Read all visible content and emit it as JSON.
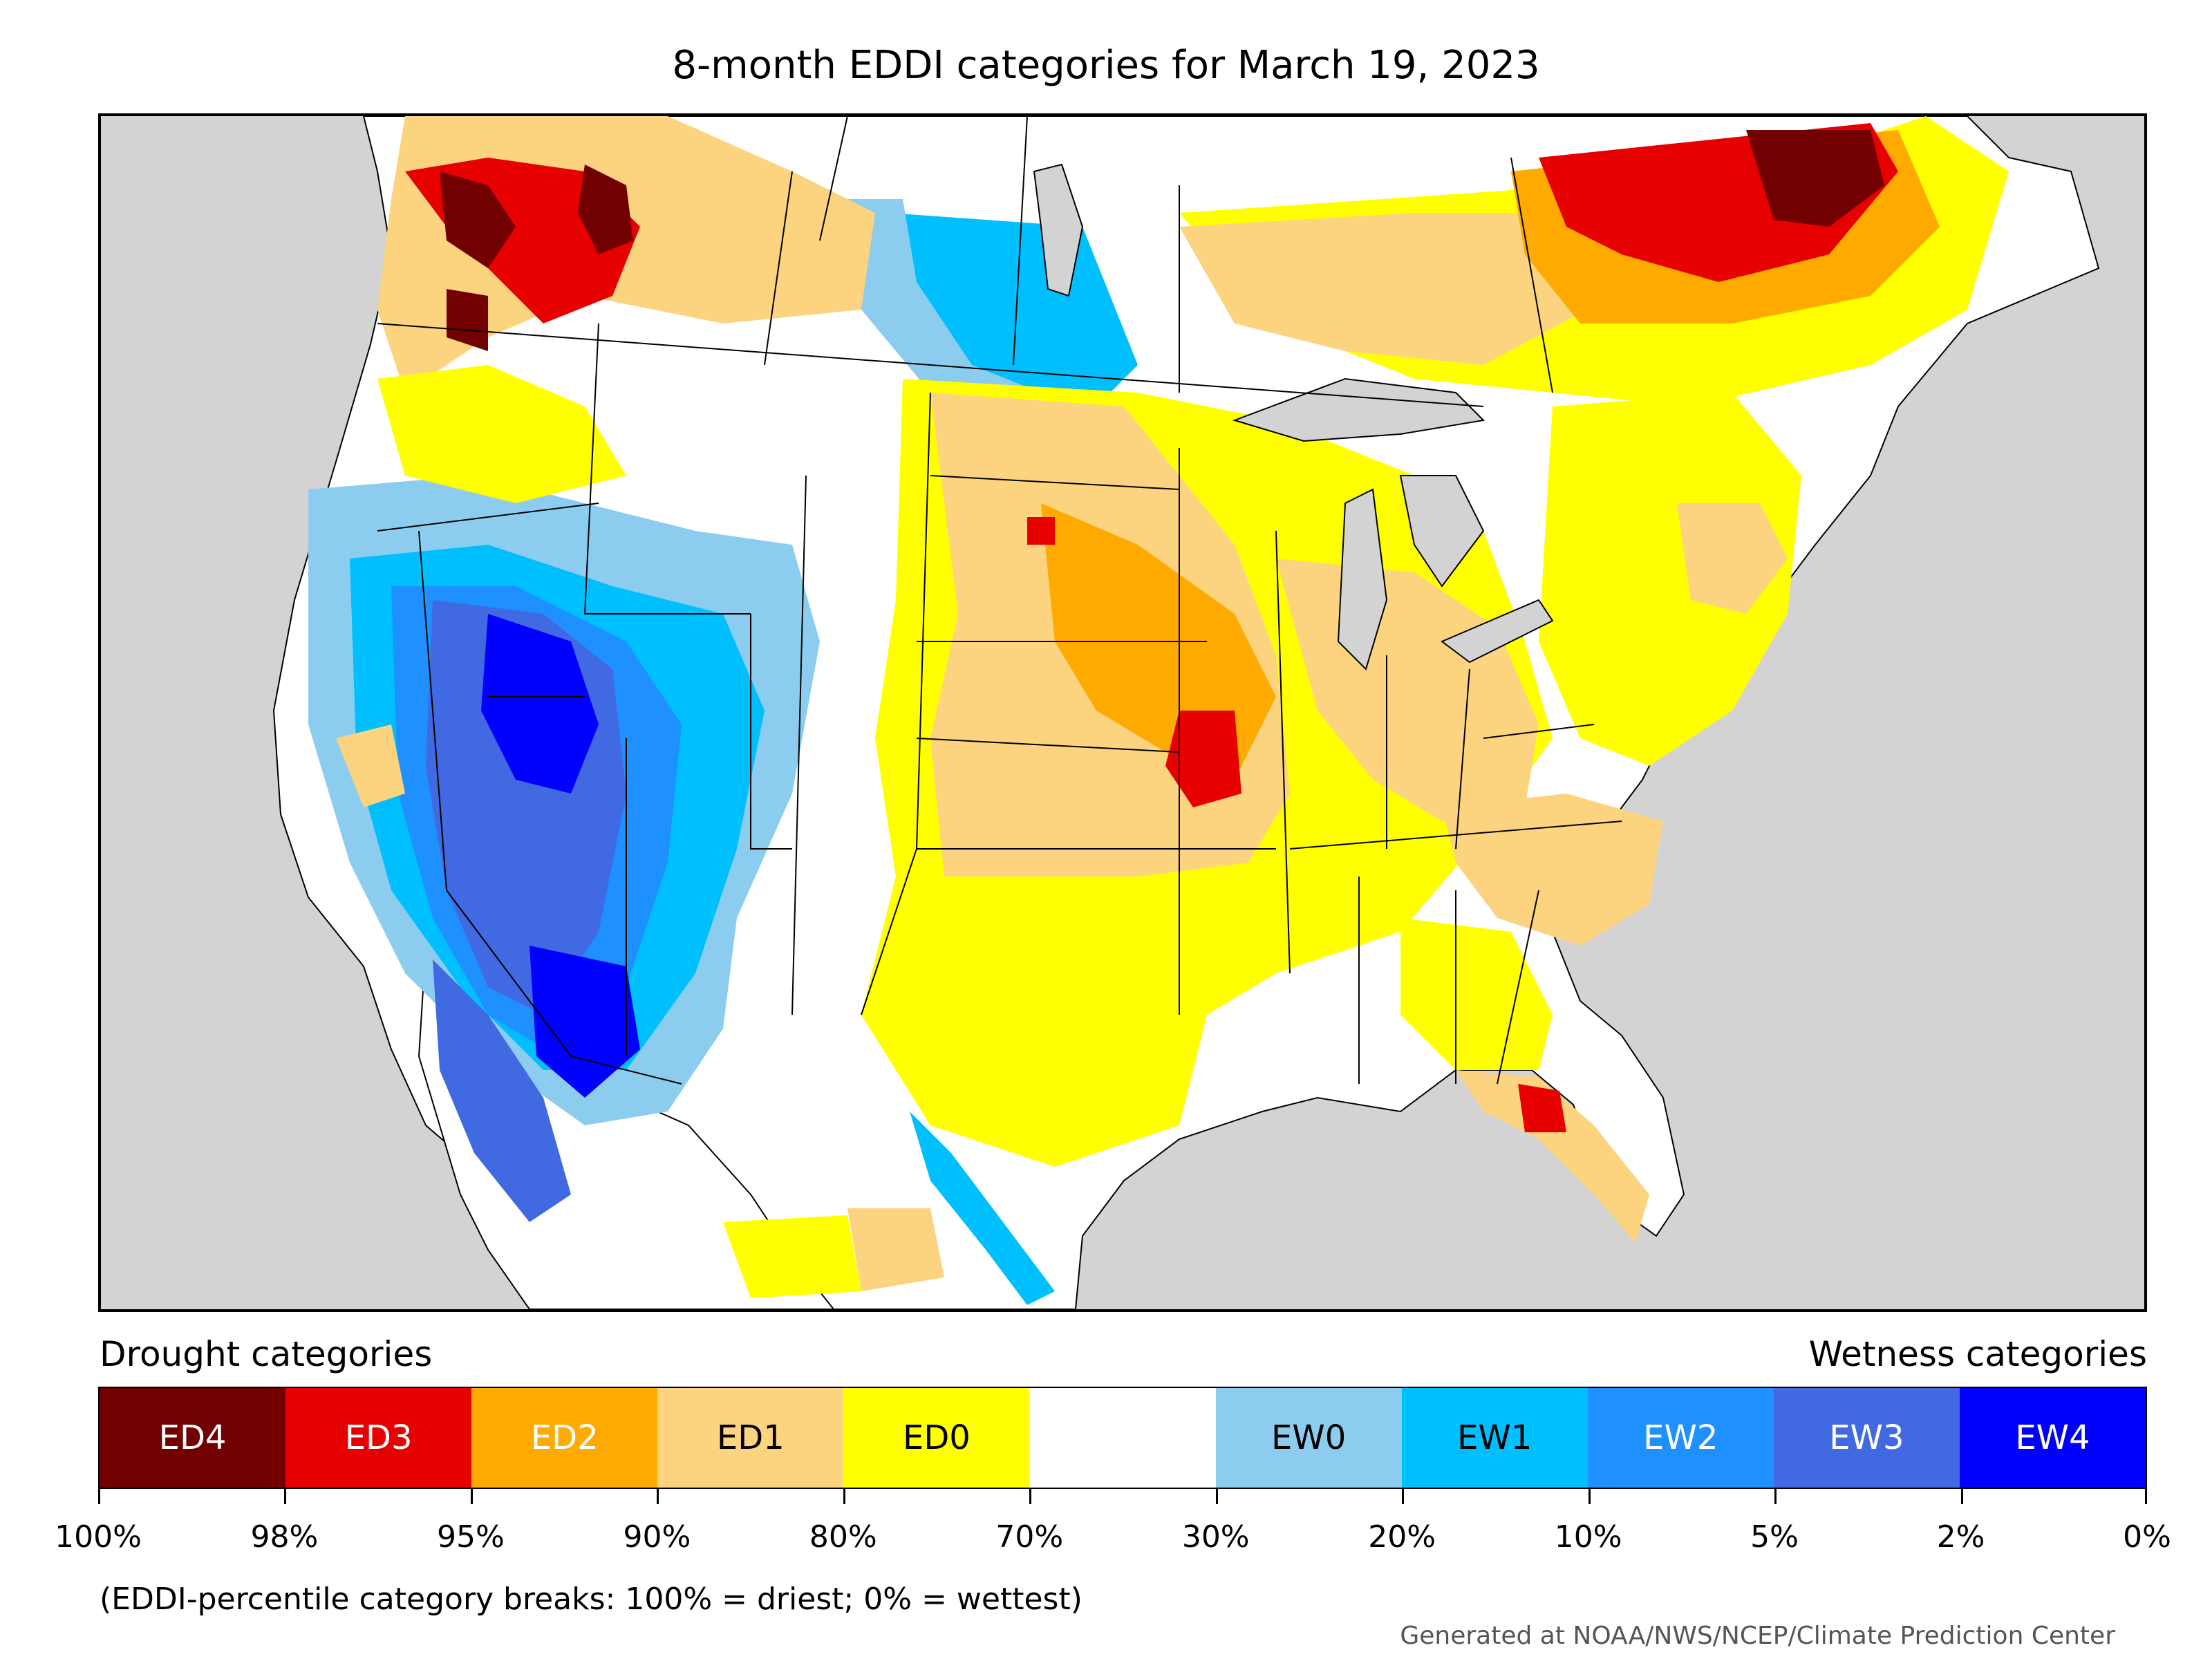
{
  "title": "8-month EDDI categories for March 19, 2023",
  "legend": {
    "drought_label": "Drought categories",
    "wetness_label": "Wetness categories",
    "categories": [
      {
        "label": "ED4",
        "color": "#730000",
        "text_color": "#ffffff"
      },
      {
        "label": "ED3",
        "color": "#e60000",
        "text_color": "#ffffff"
      },
      {
        "label": "ED2",
        "color": "#ffaa00",
        "text_color": "#ffffff"
      },
      {
        "label": "ED1",
        "color": "#fcd37f",
        "text_color": "#000000"
      },
      {
        "label": "ED0",
        "color": "#ffff00",
        "text_color": "#000000"
      },
      {
        "label": "",
        "color": "#ffffff",
        "text_color": "#000000"
      },
      {
        "label": "EW0",
        "color": "#8ccdef",
        "text_color": "#000000"
      },
      {
        "label": "EW1",
        "color": "#00bfff",
        "text_color": "#000000"
      },
      {
        "label": "EW2",
        "color": "#1e90ff",
        "text_color": "#ffffff"
      },
      {
        "label": "EW3",
        "color": "#4169e1",
        "text_color": "#ffffff"
      },
      {
        "label": "EW4",
        "color": "#0000ff",
        "text_color": "#ffffff"
      }
    ],
    "tick_labels": [
      "100%",
      "98%",
      "95%",
      "90%",
      "80%",
      "70%",
      "30%",
      "20%",
      "10%",
      "5%",
      "2%",
      "0%"
    ]
  },
  "footnote": "(EDDI-percentile category breaks: 100% = driest; 0% = wettest)",
  "credit": "Generated at NOAA/NWS/NCEP/Climate Prediction Center",
  "colors": {
    "ocean": "#d3d3d3",
    "land": "#ffffff",
    "border": "#000000"
  }
}
